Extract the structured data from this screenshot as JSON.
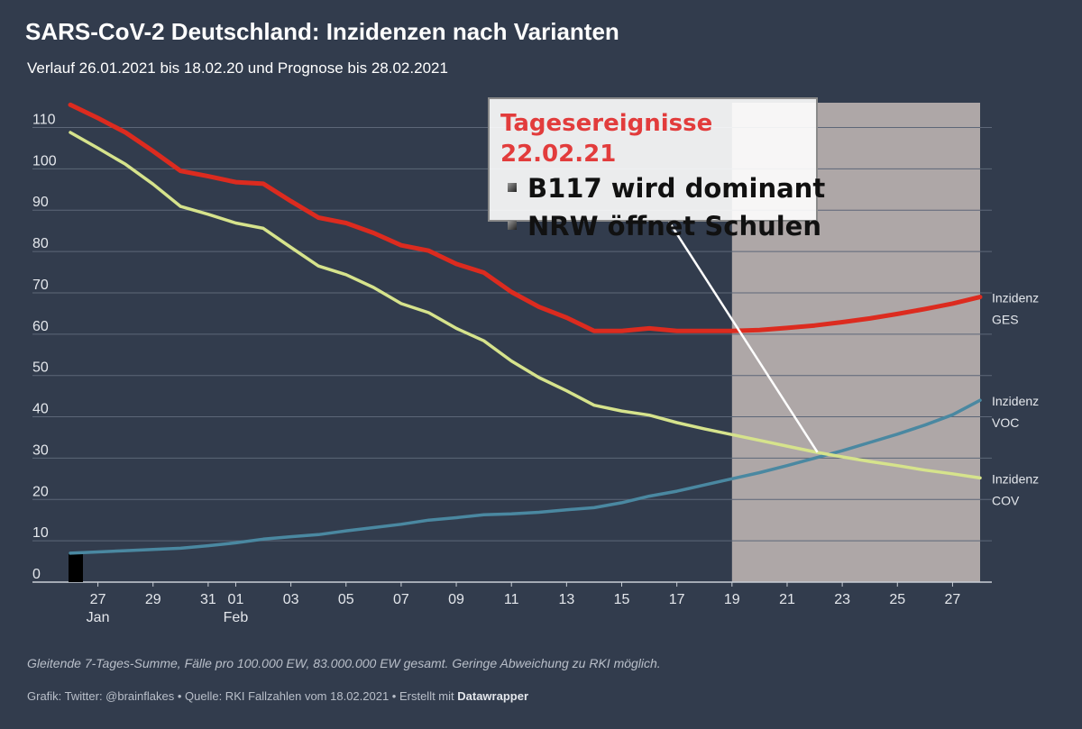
{
  "header": {
    "title": "SARS-CoV-2 Deutschland: Inzidenzen nach Varianten",
    "subtitle": "Verlauf 26.01.2021 bis 18.02.20 und Prognose bis 28.02.2021"
  },
  "annotation": {
    "title": "Tagesereignisse 22.02.21",
    "items": [
      "B117 wird dominant",
      "NRW öffnet Schulen"
    ]
  },
  "footer": {
    "notes": "Gleitende 7-Tages-Summe, Fälle pro 100.000 EW, 83.000.000 EW gesamt. Geringe Abweichung zu RKI möglich.",
    "credits_prefix": "Grafik: Twitter: @brainflakes • Quelle: RKI Fallzahlen vom 18.02.2021 • Erstellt mit ",
    "credits_brand": "Datawrapper"
  },
  "colors": {
    "background": "#323c4d",
    "grid": "#5d6778",
    "ges": "#dc2b1f",
    "cov": "#d6e38c",
    "voc": "#4a88a1",
    "forecast_band": "#aea7a7",
    "annotation_title": "#e23c3c"
  },
  "chart_data": {
    "type": "line",
    "title": "SARS-CoV-2 Deutschland: Inzidenzen nach Varianten",
    "x_type": "date",
    "x_range": [
      "2021-01-26",
      "2021-02-28"
    ],
    "ylim": [
      0,
      116
    ],
    "yticks": [
      0,
      10,
      20,
      30,
      40,
      50,
      60,
      70,
      80,
      90,
      100,
      110
    ],
    "xticks": [
      {
        "date": "2021-01-27",
        "label": "27",
        "sub": "Jan"
      },
      {
        "date": "2021-01-29",
        "label": "29",
        "sub": ""
      },
      {
        "date": "2021-01-31",
        "label": "31",
        "sub": ""
      },
      {
        "date": "2021-02-01",
        "label": "01",
        "sub": "Feb"
      },
      {
        "date": "2021-02-03",
        "label": "03",
        "sub": ""
      },
      {
        "date": "2021-02-05",
        "label": "05",
        "sub": ""
      },
      {
        "date": "2021-02-07",
        "label": "07",
        "sub": ""
      },
      {
        "date": "2021-02-09",
        "label": "09",
        "sub": ""
      },
      {
        "date": "2021-02-11",
        "label": "11",
        "sub": ""
      },
      {
        "date": "2021-02-13",
        "label": "13",
        "sub": ""
      },
      {
        "date": "2021-02-15",
        "label": "15",
        "sub": ""
      },
      {
        "date": "2021-02-17",
        "label": "17",
        "sub": ""
      },
      {
        "date": "2021-02-19",
        "label": "19",
        "sub": ""
      },
      {
        "date": "2021-02-21",
        "label": "21",
        "sub": ""
      },
      {
        "date": "2021-02-23",
        "label": "23",
        "sub": ""
      },
      {
        "date": "2021-02-25",
        "label": "25",
        "sub": ""
      },
      {
        "date": "2021-02-27",
        "label": "27",
        "sub": ""
      }
    ],
    "grid": true,
    "forecast_period": [
      "2021-02-19",
      "2021-02-28"
    ],
    "start_marker": {
      "date": "2021-01-26",
      "value": 7
    },
    "annotation_target": {
      "date": "2021-02-22",
      "value": 31
    },
    "x": [
      "2021-01-26",
      "2021-01-27",
      "2021-01-28",
      "2021-01-29",
      "2021-01-30",
      "2021-01-31",
      "2021-02-01",
      "2021-02-02",
      "2021-02-03",
      "2021-02-04",
      "2021-02-05",
      "2021-02-06",
      "2021-02-07",
      "2021-02-08",
      "2021-02-09",
      "2021-02-10",
      "2021-02-11",
      "2021-02-12",
      "2021-02-13",
      "2021-02-14",
      "2021-02-15",
      "2021-02-16",
      "2021-02-17",
      "2021-02-18",
      "2021-02-19",
      "2021-02-20",
      "2021-02-21",
      "2021-02-22",
      "2021-02-23",
      "2021-02-24",
      "2021-02-25",
      "2021-02-26",
      "2021-02-27",
      "2021-02-28"
    ],
    "series": [
      {
        "name": "Inzidenz GES",
        "label_lines": [
          "Inzidenz",
          "GES"
        ],
        "color": "#dc2b1f",
        "values": [
          115.5,
          112.3,
          108.8,
          104.3,
          99.5,
          98.2,
          96.8,
          96.4,
          92.2,
          88.2,
          86.9,
          84.5,
          81.5,
          80.2,
          77.0,
          74.9,
          70.2,
          66.6,
          64.0,
          60.8,
          60.8,
          61.4,
          60.8,
          60.8,
          60.8,
          61.0,
          61.5,
          62.1,
          62.9,
          63.8,
          64.9,
          66.1,
          67.4,
          69.0
        ]
      },
      {
        "name": "Inzidenz VOC",
        "label_lines": [
          "Inzidenz",
          "VOC"
        ],
        "color": "#4a88a1",
        "values": [
          7.0,
          7.3,
          7.6,
          7.9,
          8.2,
          8.8,
          9.5,
          10.4,
          11.0,
          11.5,
          12.4,
          13.2,
          14.0,
          15.0,
          15.6,
          16.3,
          16.5,
          16.9,
          17.5,
          18.0,
          19.2,
          20.8,
          22.0,
          23.5,
          25.0,
          26.5,
          28.2,
          30.0,
          31.8,
          33.8,
          35.8,
          38.0,
          40.5,
          44.0
        ]
      },
      {
        "name": "Inzidenz COV",
        "label_lines": [
          "Inzidenz",
          "COV"
        ],
        "color": "#d6e38c",
        "values": [
          108.8,
          105.0,
          101.1,
          96.3,
          90.9,
          89.0,
          86.9,
          85.6,
          81.0,
          76.5,
          74.4,
          71.3,
          67.4,
          65.2,
          61.4,
          58.4,
          53.5,
          49.5,
          46.3,
          42.8,
          41.4,
          40.4,
          38.6,
          37.1,
          35.7,
          34.3,
          32.9,
          31.5,
          30.3,
          29.2,
          28.2,
          27.1,
          26.2,
          25.2
        ]
      }
    ]
  }
}
